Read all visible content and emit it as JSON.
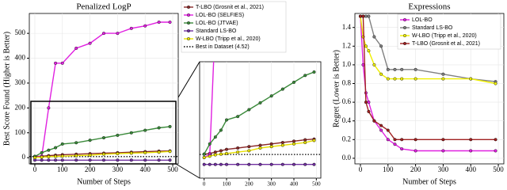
{
  "chart_data": [
    {
      "type": "line",
      "title": "Penalized LogP",
      "xlabel": "Number of Steps",
      "ylabel": "Best Score Found (Higher is Better)",
      "x": [
        0,
        25,
        50,
        75,
        100,
        150,
        200,
        250,
        300,
        350,
        400,
        450,
        490
      ],
      "series": [
        {
          "name": "T-LBO (Grosnit et al., 2021)",
          "color": "#8b2a2a",
          "values": [
            5,
            6,
            8,
            10,
            12,
            14,
            16,
            18,
            20,
            22,
            24,
            26,
            27
          ]
        },
        {
          "name": "LOL-BO (SELFIES)",
          "color": "#e020e0",
          "values": [
            0,
            5,
            200,
            380,
            380,
            440,
            460,
            500,
            500,
            520,
            530,
            545,
            545
          ]
        },
        {
          "name": "LOL-BO (JTVAE)",
          "color": "#3a8a3a",
          "values": [
            5,
            20,
            30,
            40,
            55,
            60,
            70,
            80,
            90,
            100,
            110,
            120,
            125
          ]
        },
        {
          "name": "Standard LS-BO",
          "color": "#7030a0",
          "values": [
            -10,
            -10,
            -10,
            -10,
            -10,
            -10,
            -10,
            -10,
            -10,
            -10,
            -10,
            -10,
            -10
          ]
        },
        {
          "name": "W-LBO (Tripp et al., 2020)",
          "color": "#e8e000",
          "values": [
            0,
            2,
            4,
            5,
            6,
            8,
            10,
            14,
            16,
            18,
            20,
            22,
            25
          ]
        }
      ],
      "reference": {
        "name": "Best in Dataset (4.52)",
        "value": 4.52
      },
      "xlim": [
        -20,
        520
      ],
      "ylim": [
        -25,
        580
      ],
      "xticks": [
        0,
        100,
        200,
        300,
        400,
        500
      ],
      "yticks": [
        0,
        100,
        200,
        300,
        400,
        500
      ],
      "grid": true,
      "legend": "outside-right",
      "inset": {
        "ylim": [
          -30,
          140
        ]
      }
    },
    {
      "type": "line",
      "title": "Expressions",
      "xlabel": "Number of Steps",
      "ylabel": "Regret (Lower is Better)",
      "x": [
        0,
        10,
        20,
        30,
        50,
        75,
        100,
        125,
        150,
        200,
        300,
        400,
        490
      ],
      "series": [
        {
          "name": "LOL-BO",
          "color": "#e020e0",
          "values": [
            1.52,
            1.0,
            0.7,
            0.6,
            0.4,
            0.3,
            0.2,
            0.15,
            0.1,
            0.08,
            0.08,
            0.08,
            0.08
          ]
        },
        {
          "name": "Standard LS-BO",
          "color": "#808080",
          "values": [
            1.52,
            1.52,
            1.52,
            1.52,
            1.3,
            1.2,
            0.95,
            0.95,
            0.95,
            0.95,
            0.9,
            0.85,
            0.82
          ]
        },
        {
          "name": "W-LBO (Tripp et al., 2020)",
          "color": "#f0f000",
          "values": [
            1.52,
            1.3,
            1.2,
            1.15,
            1.0,
            0.9,
            0.85,
            0.85,
            0.85,
            0.85,
            0.85,
            0.85,
            0.8
          ]
        },
        {
          "name": "T-LBO (Grosnit et al., 2021)",
          "color": "#a02020",
          "values": [
            1.52,
            1.52,
            0.6,
            0.5,
            0.4,
            0.35,
            0.3,
            0.2,
            0.2,
            0.2,
            0.2,
            0.2,
            0.2
          ]
        }
      ],
      "xlim": [
        -20,
        520
      ],
      "ylim": [
        -0.06,
        1.55
      ],
      "xticks": [
        0,
        100,
        200,
        300,
        400,
        500
      ],
      "yticks": [
        {
          "value": 0,
          "label": "0.0"
        },
        0.2,
        0.4,
        0.6,
        0.8,
        {
          "value": 1,
          "label": "1.0"
        },
        1.2,
        1.4
      ],
      "grid": true,
      "legend": "upper-right"
    }
  ]
}
